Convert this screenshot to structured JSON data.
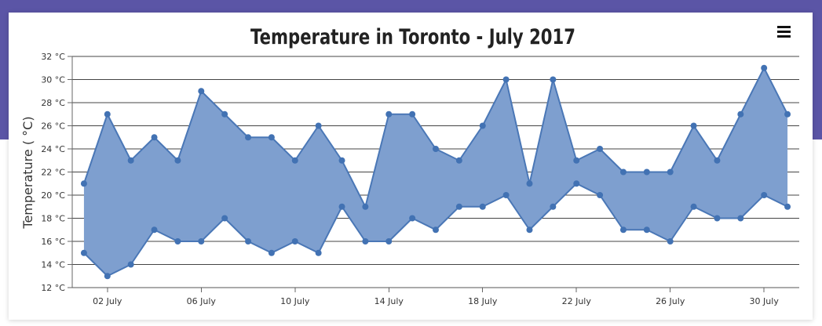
{
  "chart_data": {
    "type": "area",
    "subtype": "range-area",
    "title": "Temperature in Toronto - July 2017",
    "xlabel": "",
    "ylabel": "Temperature ( °C)",
    "y_tick_suffix": " °C",
    "ylim": [
      12,
      32
    ],
    "y_ticks": [
      12,
      14,
      16,
      18,
      20,
      22,
      24,
      26,
      28,
      30,
      32
    ],
    "x_tick_labels": [
      "02 July",
      "06 July",
      "10 July",
      "14 July",
      "18 July",
      "22 July",
      "26 July",
      "30 July"
    ],
    "x_tick_days": [
      2,
      6,
      10,
      14,
      18,
      22,
      26,
      30
    ],
    "grid": true,
    "legend": "none",
    "colors": {
      "fill": "#7e9fcf",
      "line": "#4a77b6",
      "marker": "#4272b3",
      "grid": "#444444",
      "title": "#222222"
    },
    "x": [
      1,
      2,
      3,
      4,
      5,
      6,
      7,
      8,
      9,
      10,
      11,
      12,
      13,
      14,
      15,
      16,
      17,
      18,
      19,
      20,
      21,
      22,
      23,
      24,
      25,
      26,
      27,
      28,
      29,
      30,
      31
    ],
    "series": [
      {
        "values_low": [
          15,
          13,
          14,
          17,
          16,
          16,
          18,
          16,
          15,
          16,
          15,
          19,
          16,
          16,
          18,
          17,
          19,
          19,
          20,
          17,
          19,
          21,
          20,
          17,
          17,
          16,
          19,
          18,
          18,
          20,
          19
        ],
        "values_high": [
          21,
          27,
          23,
          25,
          23,
          29,
          27,
          25,
          25,
          23,
          26,
          23,
          19,
          27,
          27,
          24,
          23,
          26,
          30,
          21,
          30,
          23,
          24,
          22,
          22,
          22,
          26,
          23,
          27,
          31,
          27
        ]
      }
    ]
  },
  "toolbar": {
    "menu_icon": "hamburger-menu-icon"
  }
}
